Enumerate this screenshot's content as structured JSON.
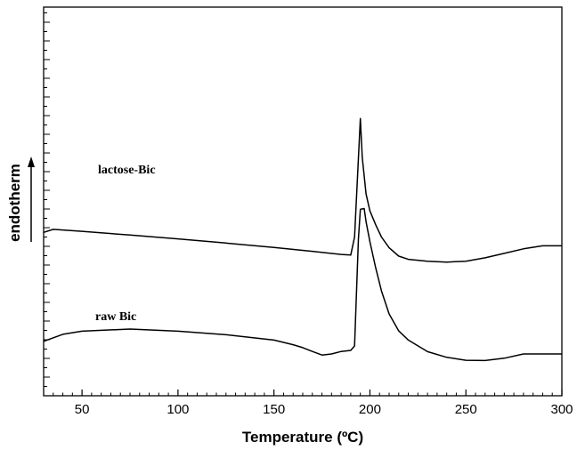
{
  "chart_data": {
    "type": "line",
    "title": "",
    "xlabel": "Temperature (ºC)",
    "ylabel": "endotherm",
    "xlim": [
      30,
      300
    ],
    "x_ticks": [
      50,
      100,
      150,
      200,
      250,
      300
    ],
    "y_ticks_labeled": false,
    "grid": false,
    "legend": "none",
    "series": [
      {
        "name": "lactose-Bic",
        "color": "#000000",
        "x": [
          30,
          35,
          50,
          75,
          100,
          125,
          150,
          170,
          185,
          190,
          192,
          194,
          195,
          196,
          198,
          200,
          203,
          206,
          210,
          215,
          220,
          230,
          240,
          250,
          260,
          270,
          280,
          290,
          300
        ],
        "y": [
          0.79,
          0.81,
          0.797,
          0.773,
          0.748,
          0.721,
          0.692,
          0.667,
          0.647,
          0.643,
          0.76,
          1.27,
          1.53,
          1.28,
          1.04,
          0.93,
          0.84,
          0.76,
          0.69,
          0.636,
          0.615,
          0.603,
          0.597,
          0.603,
          0.625,
          0.654,
          0.683,
          0.703,
          0.703
        ]
      },
      {
        "name": "raw Bic",
        "color": "#000000",
        "x": [
          30,
          40,
          50,
          75,
          100,
          125,
          150,
          160,
          165,
          170,
          175,
          180,
          185,
          190,
          192,
          194,
          195,
          197,
          198,
          200,
          203,
          206,
          210,
          215,
          220,
          230,
          240,
          250,
          260,
          270,
          280,
          290,
          300
        ],
        "y": [
          0.082,
          0.128,
          0.148,
          0.162,
          0.148,
          0.125,
          0.09,
          0.06,
          0.041,
          0.016,
          -0.007,
          0.0,
          0.016,
          0.023,
          0.052,
          0.745,
          0.94,
          0.945,
          0.86,
          0.73,
          0.56,
          0.41,
          0.26,
          0.15,
          0.09,
          0.015,
          -0.022,
          -0.041,
          -0.043,
          -0.028,
          0.0,
          0.0,
          0.0
        ]
      }
    ],
    "annotations": [
      "lactose-Bic",
      "raw Bic"
    ]
  }
}
